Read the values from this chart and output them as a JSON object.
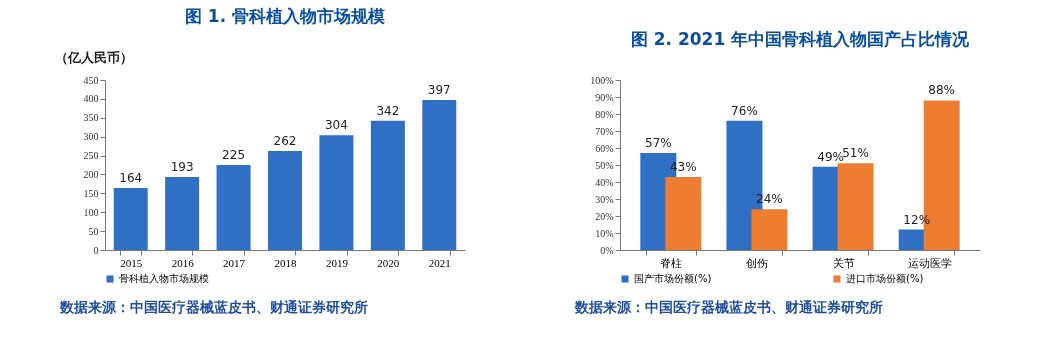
{
  "chart_data": [
    {
      "type": "bar",
      "title": "图 1.  骨科植入物市场规模",
      "ylabel": "（亿人民币）",
      "categories": [
        "2015",
        "2016",
        "2017",
        "2018",
        "2019",
        "2020",
        "2021"
      ],
      "series": [
        {
          "name": "骨科植入物市场规模",
          "color": "#2f6fc4",
          "values": [
            164,
            193,
            225,
            262,
            304,
            342,
            397
          ]
        }
      ],
      "ylim": [
        0,
        450
      ],
      "yticks": [
        0,
        50,
        100,
        150,
        200,
        250,
        300,
        350,
        400,
        450
      ],
      "data_labels": true,
      "legend": "bottom",
      "grid": false,
      "annotations": [
        "数据来源：中国医疗器械蓝皮书、财通证券研究所"
      ]
    },
    {
      "type": "bar",
      "title": "图 2.  2021 年中国骨科植入物国产占比情况",
      "categories": [
        "脊柱",
        "创伤",
        "关节",
        "运动医学"
      ],
      "series": [
        {
          "name": "国产市场份额(%)",
          "color": "#2f6fc4",
          "values": [
            57,
            76,
            49,
            12
          ],
          "value_labels": [
            "57%",
            "76%",
            "49%",
            "12%"
          ]
        },
        {
          "name": "进口市场份额(%)",
          "color": "#ed7d31",
          "values": [
            43,
            24,
            51,
            88
          ],
          "value_labels": [
            "43%",
            "24%",
            "51%",
            "88%"
          ]
        }
      ],
      "ylim": [
        0,
        100
      ],
      "yticks": [
        {
          "value": 0,
          "label": "0%"
        },
        {
          "value": 10,
          "label": "10%"
        },
        {
          "value": 20,
          "label": "20%"
        },
        {
          "value": 30,
          "label": "30%"
        },
        {
          "value": 40,
          "label": "40%"
        },
        {
          "value": 50,
          "label": "50%"
        },
        {
          "value": 60,
          "label": "60%"
        },
        {
          "value": 70,
          "label": "70%"
        },
        {
          "value": 80,
          "label": "80%"
        },
        {
          "value": 90,
          "label": "90%"
        },
        {
          "value": 100,
          "label": "100%"
        }
      ],
      "legend": "bottom",
      "grid": false,
      "annotations": [
        "数据来源：中国医疗器械蓝皮书、财通证券研究所"
      ]
    }
  ]
}
